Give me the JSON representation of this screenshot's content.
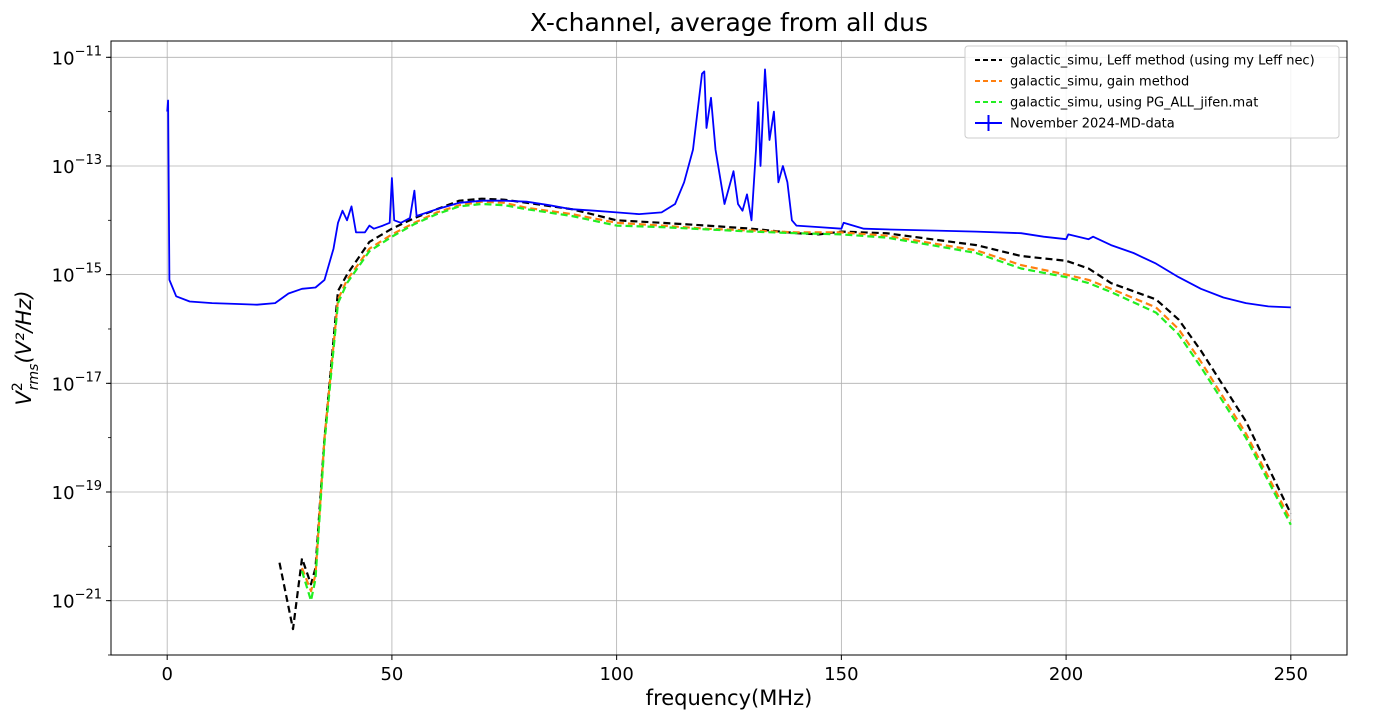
{
  "chart_data": {
    "type": "line",
    "title": "X-channel, average from all dus",
    "xlabel": "frequency(MHz)",
    "ylabel_base": "V",
    "ylabel_sup": "2",
    "ylabel_sub": "rms",
    "ylabel_unit": "(V²/Hz)",
    "xlim": [
      -12.5,
      262.5
    ],
    "ylim_log10": [
      -22.0,
      -10.7
    ],
    "y_scale": "log",
    "grid": true,
    "legend_position": "top-right",
    "x_ticks": [
      0,
      50,
      100,
      150,
      200,
      250
    ],
    "x_tick_labels": [
      "0",
      "50",
      "100",
      "150",
      "200",
      "250"
    ],
    "y_ticks_log10": [
      -21,
      -19,
      -17,
      -15,
      -13,
      -11
    ],
    "y_tick_labels": [
      {
        "base": "10",
        "exp": "−21"
      },
      {
        "base": "10",
        "exp": "−19"
      },
      {
        "base": "10",
        "exp": "−17"
      },
      {
        "base": "10",
        "exp": "−15"
      },
      {
        "base": "10",
        "exp": "−13"
      },
      {
        "base": "10",
        "exp": "−11"
      }
    ],
    "series": [
      {
        "name": "galactic_simu, Leff method (using my Leff nec)",
        "color": "#000000",
        "dash": "dashed",
        "points": [
          [
            25,
            5e-21
          ],
          [
            28,
            3e-22
          ],
          [
            30,
            6e-21
          ],
          [
            32,
            2e-21
          ],
          [
            33,
            4e-21
          ],
          [
            35,
            1e-18
          ],
          [
            38,
            5e-16
          ],
          [
            40,
            1e-15
          ],
          [
            45,
            4e-15
          ],
          [
            50,
            7e-15
          ],
          [
            55,
            1.1e-14
          ],
          [
            60,
            1.6e-14
          ],
          [
            65,
            2.3e-14
          ],
          [
            70,
            2.5e-14
          ],
          [
            75,
            2.4e-14
          ],
          [
            80,
            2.1e-14
          ],
          [
            90,
            1.6e-14
          ],
          [
            100,
            1e-14
          ],
          [
            110,
            9e-15
          ],
          [
            120,
            8e-15
          ],
          [
            130,
            7e-15
          ],
          [
            140,
            5.8e-15
          ],
          [
            145,
            5.5e-15
          ],
          [
            150,
            6.2e-15
          ],
          [
            160,
            5.8e-15
          ],
          [
            170,
            4.5e-15
          ],
          [
            180,
            3.5e-15
          ],
          [
            190,
            2.2e-15
          ],
          [
            200,
            1.8e-15
          ],
          [
            205,
            1.3e-15
          ],
          [
            210,
            7e-16
          ],
          [
            220,
            3.5e-16
          ],
          [
            225,
            1.5e-16
          ],
          [
            230,
            4e-17
          ],
          [
            240,
            2e-18
          ],
          [
            250,
            4e-20
          ]
        ]
      },
      {
        "name": "galactic_simu, gain method",
        "color": "#ff7f0e",
        "dash": "dashed",
        "points": [
          [
            30,
            4e-21
          ],
          [
            32,
            1.5e-21
          ],
          [
            33,
            3e-21
          ],
          [
            35,
            1e-18
          ],
          [
            38,
            3.5e-16
          ],
          [
            40,
            8e-16
          ],
          [
            45,
            3e-15
          ],
          [
            50,
            5.5e-15
          ],
          [
            55,
            9e-15
          ],
          [
            60,
            1.4e-14
          ],
          [
            65,
            1.9e-14
          ],
          [
            70,
            2.2e-14
          ],
          [
            75,
            2.1e-14
          ],
          [
            80,
            1.7e-14
          ],
          [
            90,
            1.3e-14
          ],
          [
            100,
            9e-15
          ],
          [
            110,
            8e-15
          ],
          [
            120,
            7e-15
          ],
          [
            130,
            6.5e-15
          ],
          [
            140,
            6e-15
          ],
          [
            150,
            6e-15
          ],
          [
            160,
            5.2e-15
          ],
          [
            170,
            3.8e-15
          ],
          [
            180,
            2.8e-15
          ],
          [
            190,
            1.5e-15
          ],
          [
            200,
            1e-15
          ],
          [
            205,
            8e-16
          ],
          [
            210,
            5.5e-16
          ],
          [
            220,
            2.5e-16
          ],
          [
            225,
            1e-16
          ],
          [
            230,
            2.5e-17
          ],
          [
            240,
            1.2e-18
          ],
          [
            250,
            3e-20
          ]
        ]
      },
      {
        "name": "galactic_simu, using PG_ALL_jifen.mat",
        "color": "#22ee22",
        "dash": "dashed",
        "points": [
          [
            30,
            3.5e-21
          ],
          [
            32,
            1e-21
          ],
          [
            33,
            2.5e-21
          ],
          [
            35,
            8e-19
          ],
          [
            38,
            3e-16
          ],
          [
            40,
            7e-16
          ],
          [
            45,
            2.7e-15
          ],
          [
            50,
            5e-15
          ],
          [
            55,
            8.5e-15
          ],
          [
            60,
            1.3e-14
          ],
          [
            65,
            1.8e-14
          ],
          [
            70,
            2e-14
          ],
          [
            75,
            1.9e-14
          ],
          [
            80,
            1.6e-14
          ],
          [
            90,
            1.2e-14
          ],
          [
            100,
            8e-15
          ],
          [
            110,
            7.5e-15
          ],
          [
            120,
            6.8e-15
          ],
          [
            130,
            6.2e-15
          ],
          [
            140,
            5.8e-15
          ],
          [
            150,
            5.5e-15
          ],
          [
            160,
            4.8e-15
          ],
          [
            170,
            3.5e-15
          ],
          [
            180,
            2.5e-15
          ],
          [
            190,
            1.3e-15
          ],
          [
            200,
            9e-16
          ],
          [
            205,
            7e-16
          ],
          [
            210,
            4.8e-16
          ],
          [
            220,
            2e-16
          ],
          [
            225,
            8e-17
          ],
          [
            230,
            2e-17
          ],
          [
            240,
            1e-18
          ],
          [
            250,
            2.5e-20
          ]
        ]
      },
      {
        "name": "November 2024-MD-data",
        "color": "#0000ff",
        "dash": "solid",
        "points": [
          [
            0,
            1e-12
          ],
          [
            0.2,
            1.6e-12
          ],
          [
            0.5,
            8e-16
          ],
          [
            2,
            4e-16
          ],
          [
            5,
            3.2e-16
          ],
          [
            10,
            3e-16
          ],
          [
            15,
            2.9e-16
          ],
          [
            20,
            2.8e-16
          ],
          [
            24,
            3e-16
          ],
          [
            27,
            4.5e-16
          ],
          [
            30,
            5.5e-16
          ],
          [
            33,
            5.8e-16
          ],
          [
            35,
            8e-16
          ],
          [
            37,
            3e-15
          ],
          [
            38,
            9e-15
          ],
          [
            39,
            1.5e-14
          ],
          [
            40,
            1e-14
          ],
          [
            41,
            1.8e-14
          ],
          [
            42,
            6e-15
          ],
          [
            44,
            6e-15
          ],
          [
            45,
            8e-15
          ],
          [
            46,
            7e-15
          ],
          [
            48,
            8e-15
          ],
          [
            49.5,
            9e-15
          ],
          [
            50,
            6e-14
          ],
          [
            50.5,
            1e-14
          ],
          [
            52,
            9e-15
          ],
          [
            54,
            1.1e-14
          ],
          [
            55,
            3.5e-14
          ],
          [
            55.5,
            1.2e-14
          ],
          [
            60,
            1.6e-14
          ],
          [
            65,
            2.1e-14
          ],
          [
            70,
            2.3e-14
          ],
          [
            75,
            2.3e-14
          ],
          [
            80,
            2.2e-14
          ],
          [
            85,
            1.9e-14
          ],
          [
            90,
            1.6e-14
          ],
          [
            95,
            1.5e-14
          ],
          [
            100,
            1.4e-14
          ],
          [
            105,
            1.3e-14
          ],
          [
            110,
            1.4e-14
          ],
          [
            113,
            2e-14
          ],
          [
            115,
            5e-14
          ],
          [
            117,
            2e-13
          ],
          [
            118,
            1e-12
          ],
          [
            119,
            5e-12
          ],
          [
            119.5,
            5.5e-12
          ],
          [
            120,
            5e-13
          ],
          [
            121,
            1.8e-12
          ],
          [
            122,
            2e-13
          ],
          [
            124,
            2e-14
          ],
          [
            126,
            8e-14
          ],
          [
            127,
            2e-14
          ],
          [
            128,
            1.5e-14
          ],
          [
            129,
            3e-14
          ],
          [
            130,
            1e-14
          ],
          [
            131,
            2e-13
          ],
          [
            131.5,
            1.5e-12
          ],
          [
            132,
            1e-13
          ],
          [
            133,
            6e-12
          ],
          [
            134,
            3e-13
          ],
          [
            135,
            1e-12
          ],
          [
            136,
            5e-14
          ],
          [
            137,
            1e-13
          ],
          [
            138,
            5e-14
          ],
          [
            139,
            1e-14
          ],
          [
            140,
            8e-15
          ],
          [
            145,
            7.5e-15
          ],
          [
            150,
            7e-15
          ],
          [
            150.5,
            9e-15
          ],
          [
            155,
            7e-15
          ],
          [
            160,
            6.8e-15
          ],
          [
            170,
            6.5e-15
          ],
          [
            180,
            6.2e-15
          ],
          [
            190,
            5.8e-15
          ],
          [
            195,
            5e-15
          ],
          [
            200,
            4.5e-15
          ],
          [
            200.5,
            5.5e-15
          ],
          [
            205,
            4.5e-15
          ],
          [
            206,
            5e-15
          ],
          [
            210,
            3.5e-15
          ],
          [
            215,
            2.5e-15
          ],
          [
            220,
            1.6e-15
          ],
          [
            225,
            9e-16
          ],
          [
            230,
            5.5e-16
          ],
          [
            235,
            3.8e-16
          ],
          [
            240,
            3e-16
          ],
          [
            245,
            2.6e-16
          ],
          [
            250,
            2.5e-16
          ]
        ]
      }
    ]
  }
}
